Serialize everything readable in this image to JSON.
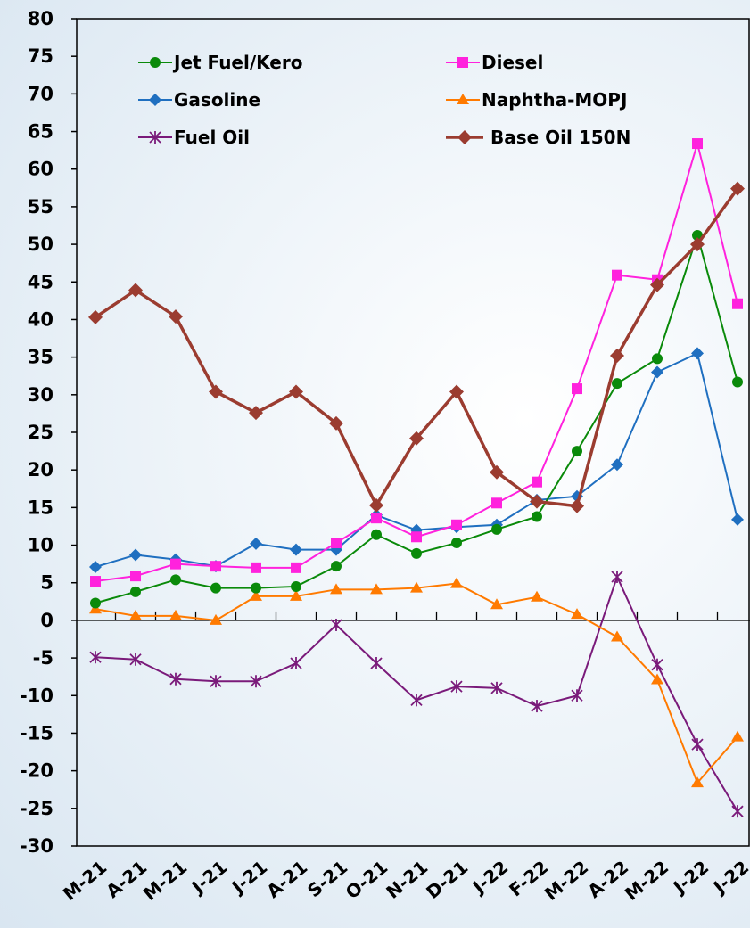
{
  "chart_data": {
    "type": "line",
    "title": "",
    "xlabel": "",
    "ylabel": "",
    "categories": [
      "M-21",
      "A-21",
      "M-21",
      "J-21",
      "J-21",
      "A-21",
      "S-21",
      "O-21",
      "N-21",
      "D-21",
      "J-22",
      "F-22",
      "M-22",
      "A-22",
      "M-22",
      "J-22",
      "J-22"
    ],
    "ylim": [
      -30,
      80
    ],
    "yticks": [
      80,
      75,
      70,
      65,
      60,
      55,
      50,
      45,
      40,
      35,
      30,
      25,
      20,
      15,
      10,
      5,
      0,
      -5,
      -10,
      -15,
      -20,
      -25,
      -30
    ],
    "grid": false,
    "legend_position": "top",
    "series": [
      {
        "name": "Jet Fuel/Kero",
        "color": "#0a8a0a",
        "marker": "circle",
        "values": [
          2.3,
          3.8,
          5.4,
          4.3,
          4.3,
          4.5,
          7.2,
          11.4,
          8.9,
          10.3,
          12.1,
          13.8,
          22.5,
          31.5,
          34.8,
          51.2,
          31.7
        ]
      },
      {
        "name": "Diesel",
        "color": "#ff22dd",
        "marker": "square",
        "values": [
          5.2,
          5.9,
          7.5,
          7.2,
          7.0,
          7.0,
          10.3,
          13.6,
          11.1,
          12.7,
          15.6,
          18.4,
          30.8,
          45.9,
          45.3,
          63.4,
          42.1
        ]
      },
      {
        "name": "Gasoline",
        "color": "#1f6fc0",
        "marker": "diamond",
        "values": [
          7.1,
          8.7,
          8.1,
          7.2,
          10.2,
          9.4,
          9.4,
          14.0,
          12.0,
          12.4,
          12.7,
          16.0,
          16.5,
          20.7,
          33.0,
          35.5,
          13.4
        ]
      },
      {
        "name": "Naphtha-MOPJ",
        "color": "#ff7a00",
        "marker": "triangle",
        "values": [
          1.5,
          0.6,
          0.6,
          0.0,
          3.2,
          3.2,
          4.1,
          4.1,
          4.3,
          4.9,
          2.1,
          3.1,
          0.8,
          -2.2,
          -7.9,
          -21.6,
          -15.5
        ]
      },
      {
        "name": "Fuel Oil",
        "color": "#7a1a7a",
        "marker": "asterisk",
        "values": [
          -4.9,
          -5.2,
          -7.8,
          -8.1,
          -8.1,
          -5.7,
          -0.6,
          -5.7,
          -10.6,
          -8.8,
          -9.0,
          -11.4,
          -10.0,
          5.8,
          -5.9,
          -16.5,
          -25.4
        ]
      },
      {
        "name": "Base Oil 150N",
        "color": "#9b3c30",
        "marker": "diamond",
        "values": [
          40.3,
          43.9,
          40.4,
          30.4,
          27.6,
          30.4,
          26.2,
          15.3,
          24.2,
          30.4,
          19.7,
          15.8,
          15.2,
          35.2,
          44.6,
          50.0,
          57.4
        ]
      }
    ]
  }
}
